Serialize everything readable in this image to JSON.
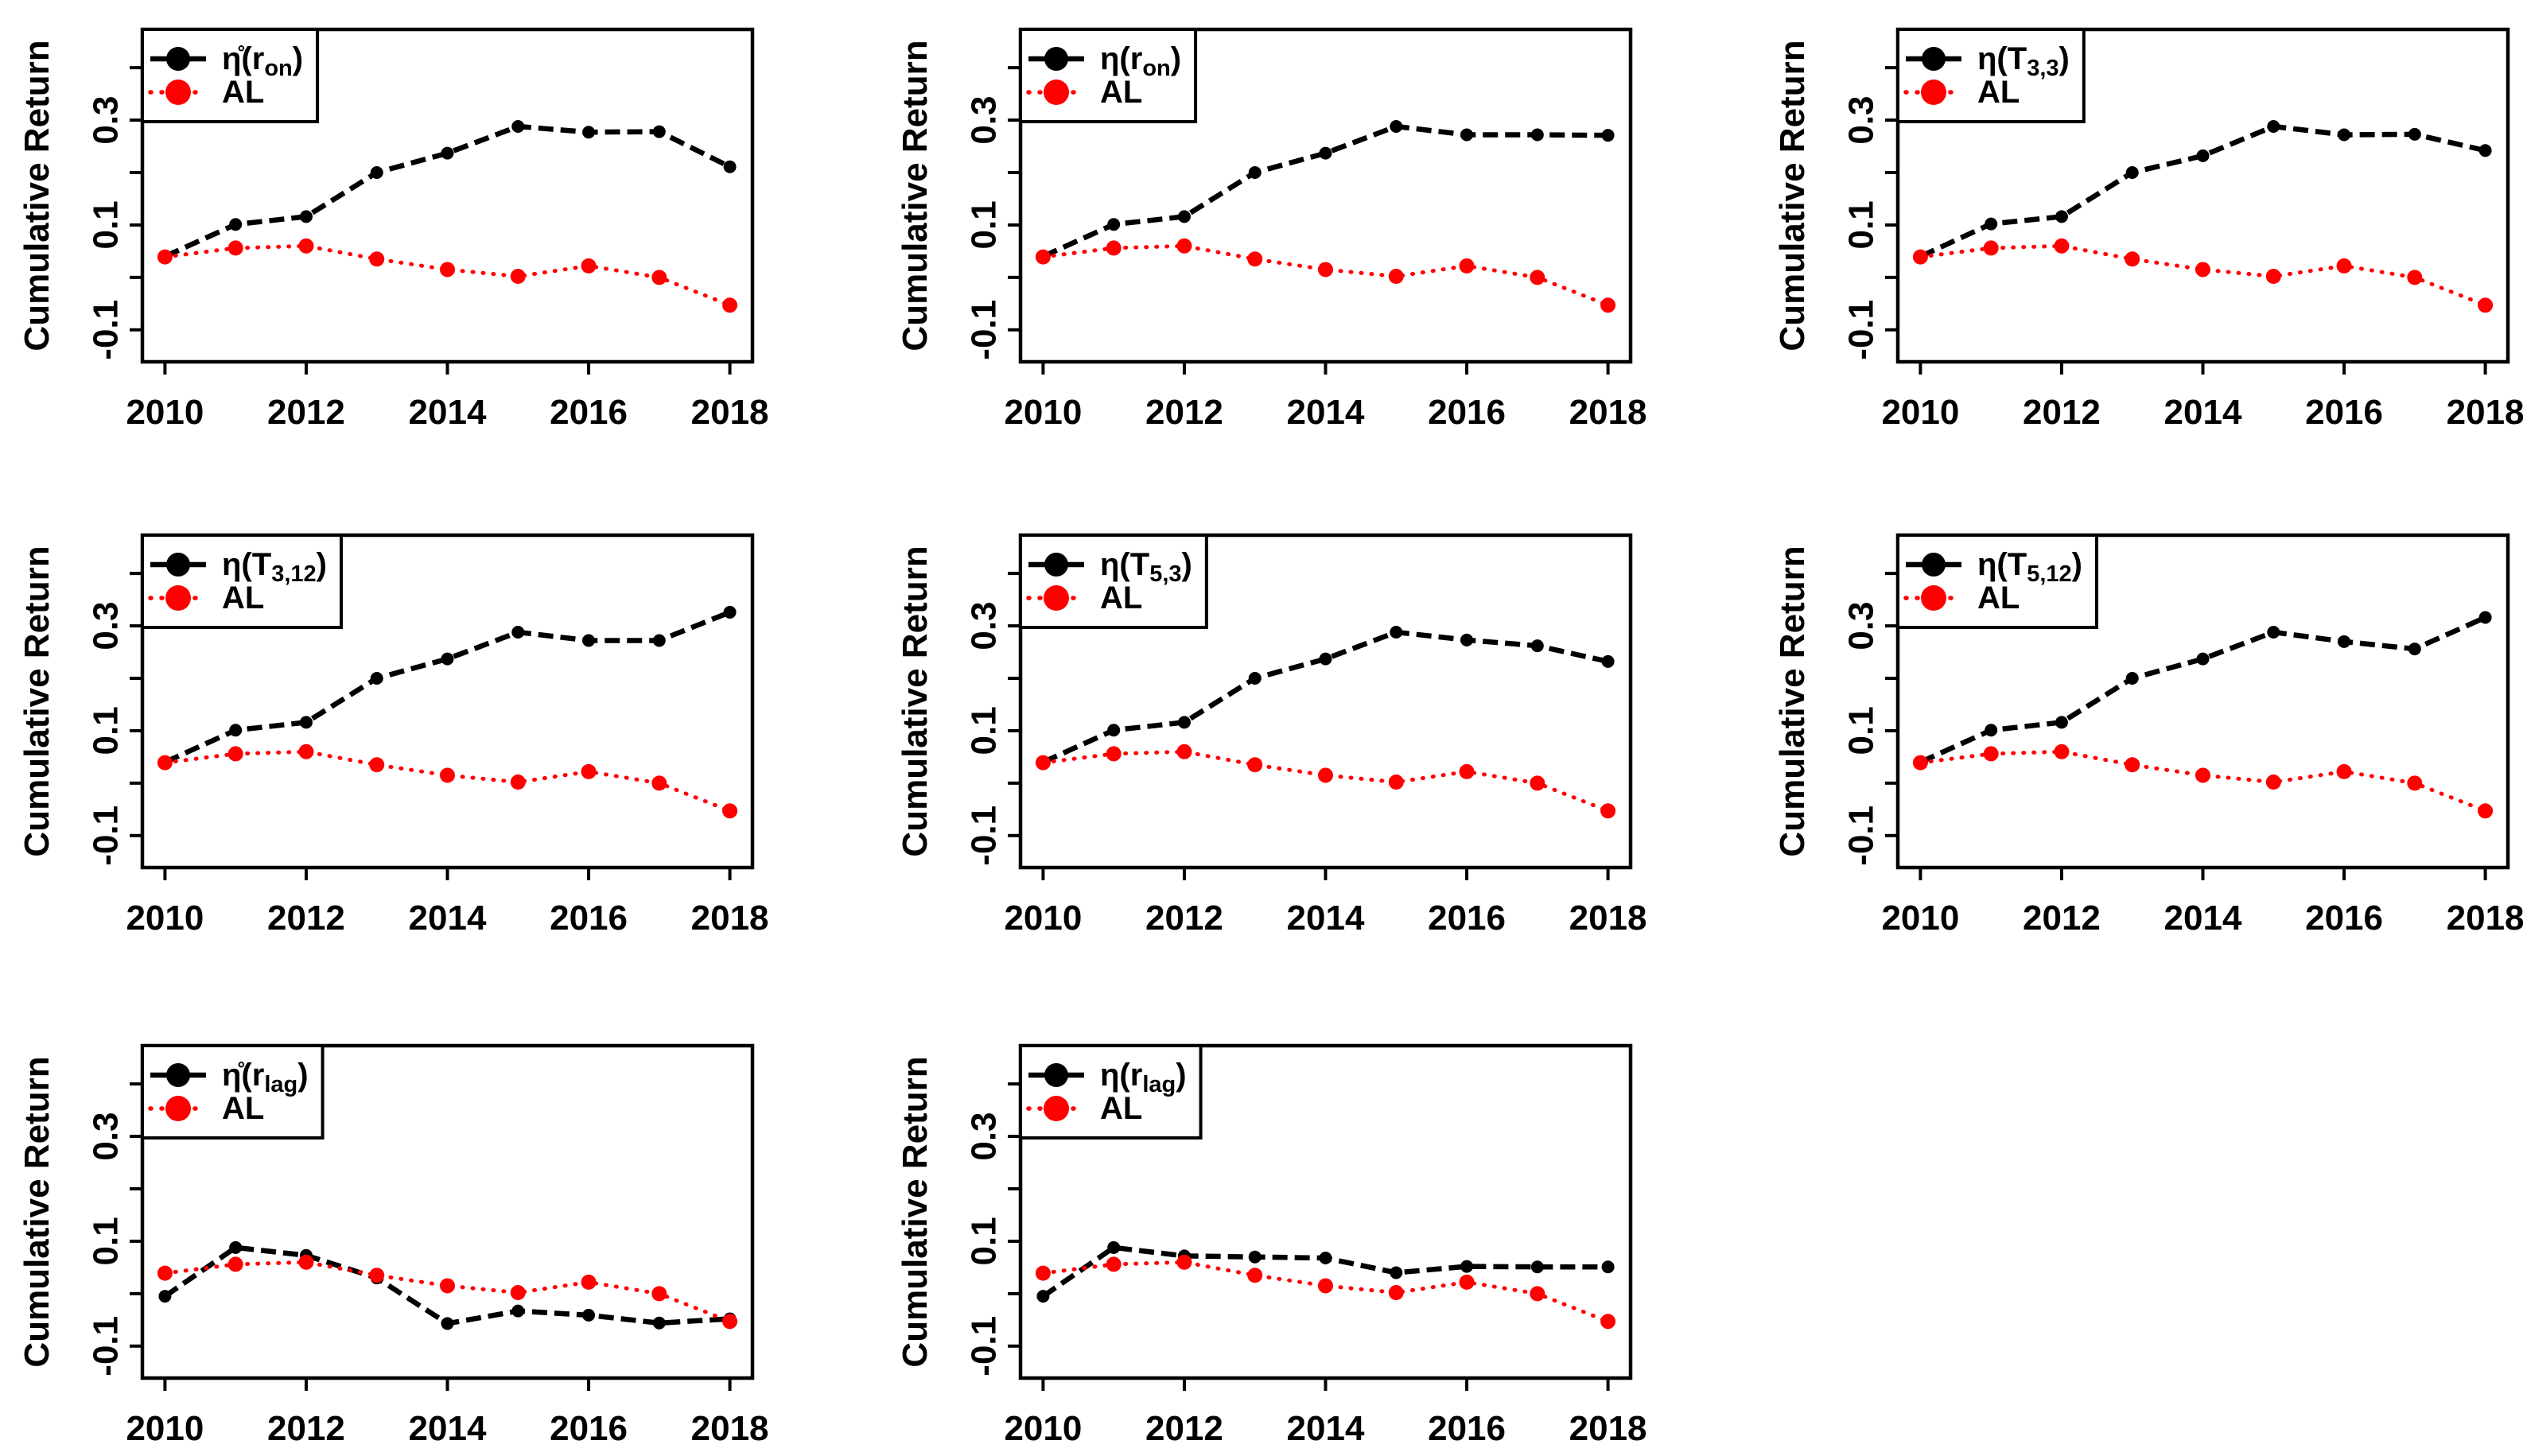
{
  "figure": {
    "background": "#ffffff",
    "ylabel": "Cumulative Return",
    "x_tick_labels": [
      "2010",
      "2012",
      "2014",
      "2016",
      "2018"
    ],
    "y_tick_labels": [
      "0.3",
      "0.1",
      "-0.1"
    ],
    "strategy_color": "#000000",
    "benchmark_color": "#ff0000",
    "benchmark_name": "AL"
  },
  "chart_defaults": {
    "type": "line",
    "x": [
      2010,
      2011,
      2012,
      2013,
      2014,
      2015,
      2016,
      2017,
      2018
    ],
    "xlabel": "",
    "ylabel": "Cumulative Return",
    "xlim": [
      2009.68,
      2018.32
    ],
    "ylim": [
      -0.161,
      0.473
    ],
    "x_ticks": [
      2010,
      2012,
      2014,
      2016,
      2018
    ],
    "y_ticks": [
      0.4,
      0.3,
      0.2,
      0.1,
      0.0,
      -0.1
    ],
    "y_ticks_labeled": [
      {
        "value": 0.3,
        "label": "0.3"
      },
      {
        "value": 0.1,
        "label": "0.1"
      },
      {
        "value": -0.1,
        "label": "-0.1"
      }
    ],
    "grid": false,
    "legend_position": "top-left"
  },
  "chart_data": [
    {
      "panel": 1,
      "series": [
        {
          "name": "η̊(r_on)",
          "name_parts": [
            {
              "text": "η̊(r"
            },
            {
              "text": "on",
              "sub": true
            },
            {
              "text": ")"
            }
          ],
          "color": "#000000",
          "line_style": "dashed",
          "marker": "filled-circle",
          "values": [
            0.04,
            0.101,
            0.116,
            0.2,
            0.237,
            0.288,
            0.277,
            0.278,
            0.211
          ]
        },
        {
          "name": "AL",
          "name_parts": [
            {
              "text": "AL"
            }
          ],
          "color": "#ff0000",
          "line_style": "dotted",
          "marker": "filled-circle",
          "values": [
            0.039,
            0.056,
            0.06,
            0.035,
            0.015,
            0.002,
            0.022,
            0.0,
            -0.053
          ]
        }
      ]
    },
    {
      "panel": 2,
      "series": [
        {
          "name": "η(r_on)",
          "name_parts": [
            {
              "text": "η(r"
            },
            {
              "text": "on",
              "sub": true
            },
            {
              "text": ")"
            }
          ],
          "color": "#000000",
          "line_style": "dashed",
          "marker": "filled-circle",
          "values": [
            0.04,
            0.101,
            0.116,
            0.2,
            0.237,
            0.288,
            0.272,
            0.272,
            0.271
          ]
        },
        {
          "name": "AL",
          "name_parts": [
            {
              "text": "AL"
            }
          ],
          "color": "#ff0000",
          "line_style": "dotted",
          "marker": "filled-circle",
          "values": [
            0.039,
            0.056,
            0.06,
            0.035,
            0.015,
            0.002,
            0.022,
            0.0,
            -0.053
          ]
        }
      ]
    },
    {
      "panel": 3,
      "series": [
        {
          "name": "η(T_3,3)",
          "name_parts": [
            {
              "text": "η(T"
            },
            {
              "text": "3,3",
              "sub": true
            },
            {
              "text": ")"
            }
          ],
          "color": "#000000",
          "line_style": "dashed",
          "marker": "filled-circle",
          "values": [
            0.04,
            0.102,
            0.116,
            0.2,
            0.232,
            0.288,
            0.272,
            0.273,
            0.242
          ]
        },
        {
          "name": "AL",
          "name_parts": [
            {
              "text": "AL"
            }
          ],
          "color": "#ff0000",
          "line_style": "dotted",
          "marker": "filled-circle",
          "values": [
            0.039,
            0.056,
            0.06,
            0.035,
            0.015,
            0.002,
            0.022,
            0.0,
            -0.053
          ]
        }
      ]
    },
    {
      "panel": 4,
      "series": [
        {
          "name": "η(T_3,12)",
          "name_parts": [
            {
              "text": "η(T"
            },
            {
              "text": "3,12",
              "sub": true
            },
            {
              "text": ")"
            }
          ],
          "color": "#000000",
          "line_style": "dashed",
          "marker": "filled-circle",
          "values": [
            0.04,
            0.101,
            0.116,
            0.2,
            0.237,
            0.288,
            0.272,
            0.272,
            0.326
          ]
        },
        {
          "name": "AL",
          "name_parts": [
            {
              "text": "AL"
            }
          ],
          "color": "#ff0000",
          "line_style": "dotted",
          "marker": "filled-circle",
          "values": [
            0.039,
            0.056,
            0.06,
            0.035,
            0.015,
            0.002,
            0.022,
            0.0,
            -0.053
          ]
        }
      ]
    },
    {
      "panel": 5,
      "series": [
        {
          "name": "η(T_5,3)",
          "name_parts": [
            {
              "text": "η(T"
            },
            {
              "text": "5,3",
              "sub": true
            },
            {
              "text": ")"
            }
          ],
          "color": "#000000",
          "line_style": "dashed",
          "marker": "filled-circle",
          "values": [
            0.04,
            0.101,
            0.116,
            0.2,
            0.237,
            0.288,
            0.273,
            0.262,
            0.232
          ]
        },
        {
          "name": "AL",
          "name_parts": [
            {
              "text": "AL"
            }
          ],
          "color": "#ff0000",
          "line_style": "dotted",
          "marker": "filled-circle",
          "values": [
            0.039,
            0.056,
            0.06,
            0.035,
            0.015,
            0.002,
            0.022,
            0.0,
            -0.053
          ]
        }
      ]
    },
    {
      "panel": 6,
      "series": [
        {
          "name": "η(T_5,12)",
          "name_parts": [
            {
              "text": "η(T"
            },
            {
              "text": "5,12",
              "sub": true
            },
            {
              "text": ")"
            }
          ],
          "color": "#000000",
          "line_style": "dashed",
          "marker": "filled-circle",
          "values": [
            0.04,
            0.101,
            0.116,
            0.2,
            0.237,
            0.288,
            0.27,
            0.256,
            0.316
          ]
        },
        {
          "name": "AL",
          "name_parts": [
            {
              "text": "AL"
            }
          ],
          "color": "#ff0000",
          "line_style": "dotted",
          "marker": "filled-circle",
          "values": [
            0.039,
            0.056,
            0.06,
            0.035,
            0.015,
            0.002,
            0.022,
            0.0,
            -0.053
          ]
        }
      ]
    },
    {
      "panel": 7,
      "series": [
        {
          "name": "η̊(r_lag)",
          "name_parts": [
            {
              "text": "η̊(r"
            },
            {
              "text": "lag",
              "sub": true
            },
            {
              "text": ")"
            }
          ],
          "color": "#000000",
          "line_style": "dashed",
          "marker": "filled-circle",
          "values": [
            -0.005,
            0.088,
            0.073,
            0.03,
            -0.057,
            -0.033,
            -0.041,
            -0.056,
            -0.048
          ]
        },
        {
          "name": "AL",
          "name_parts": [
            {
              "text": "AL"
            }
          ],
          "color": "#ff0000",
          "line_style": "dotted",
          "marker": "filled-circle",
          "values": [
            0.039,
            0.056,
            0.06,
            0.035,
            0.015,
            0.002,
            0.022,
            0.0,
            -0.053
          ]
        }
      ]
    },
    {
      "panel": 8,
      "series": [
        {
          "name": "η(r_lag)",
          "name_parts": [
            {
              "text": "η(r"
            },
            {
              "text": "lag",
              "sub": true
            },
            {
              "text": ")"
            }
          ],
          "color": "#000000",
          "line_style": "dashed",
          "marker": "filled-circle",
          "values": [
            -0.005,
            0.088,
            0.072,
            0.07,
            0.068,
            0.04,
            0.052,
            0.051,
            0.051
          ]
        },
        {
          "name": "AL",
          "name_parts": [
            {
              "text": "AL"
            }
          ],
          "color": "#ff0000",
          "line_style": "dotted",
          "marker": "filled-circle",
          "values": [
            0.039,
            0.056,
            0.06,
            0.035,
            0.015,
            0.002,
            0.022,
            0.0,
            -0.053
          ]
        }
      ]
    }
  ]
}
